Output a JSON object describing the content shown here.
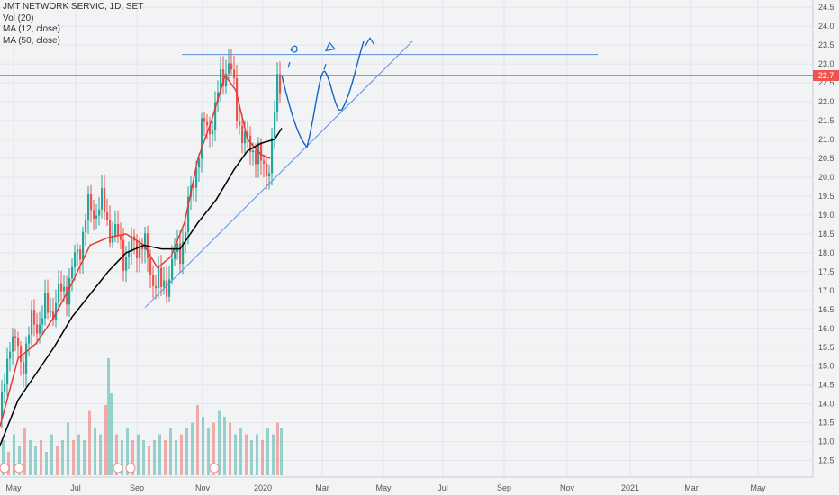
{
  "legend": {
    "symbol": "JMT NETWORK SERVIC, 1D, SET",
    "vol": "Vol (20)",
    "ma12": "MA (12, close)",
    "ma50": "MA (50, close)"
  },
  "last_price_label": "22.7",
  "colors": {
    "background": "#f2f3f5",
    "up": "#26a69a",
    "down": "#ef5350",
    "ma12": "#e53935",
    "ma50": "#000000",
    "drawing": "#1565c0",
    "trendline": "#5b8fd6",
    "price_line": "#ef5350"
  },
  "chart_data": {
    "type": "candlestick",
    "title": "JMT NETWORK SERVIC, 1D, SET",
    "y_axis": {
      "ticks": [
        "24.5",
        "24.0",
        "23.5",
        "23.0",
        "22.5",
        "22.0",
        "21.5",
        "21.0",
        "20.5",
        "20.0",
        "19.5",
        "19.0",
        "18.5",
        "18.0",
        "17.5",
        "17.0",
        "16.5",
        "16.0",
        "15.5",
        "15.0",
        "14.5",
        "14.0",
        "13.5",
        "13.0",
        "12.5"
      ],
      "range": [
        12.3,
        24.6
      ]
    },
    "x_axis": {
      "ticks": [
        "May",
        "Jul",
        "Sep",
        "Nov",
        "2020",
        "Mar",
        "May",
        "Jul",
        "Sep",
        "Nov",
        "2021",
        "Mar",
        "May"
      ]
    },
    "last_price": 22.7,
    "price_series": [
      [
        0,
        13.6
      ],
      [
        10,
        15.9
      ],
      [
        22,
        15.1
      ],
      [
        35,
        16.1
      ],
      [
        50,
        16.4
      ],
      [
        65,
        16.8
      ],
      [
        80,
        17.5
      ],
      [
        95,
        19.0
      ],
      [
        110,
        19.3
      ],
      [
        125,
        18.5
      ],
      [
        140,
        17.9
      ],
      [
        155,
        18.4
      ],
      [
        165,
        17.6
      ],
      [
        178,
        17.0
      ],
      [
        190,
        17.6
      ],
      [
        205,
        18.6
      ],
      [
        215,
        20.2
      ],
      [
        225,
        21.3
      ],
      [
        238,
        21.6
      ],
      [
        245,
        22.8
      ],
      [
        252,
        23.0
      ],
      [
        260,
        22.2
      ],
      [
        270,
        20.8
      ],
      [
        280,
        20.9
      ],
      [
        290,
        20.2
      ],
      [
        300,
        20.5
      ],
      [
        307,
        22.4
      ],
      [
        312,
        22.8
      ]
    ],
    "ma12_points": [
      [
        0,
        13.4
      ],
      [
        20,
        15.2
      ],
      [
        40,
        15.6
      ],
      [
        60,
        16.3
      ],
      [
        80,
        17.2
      ],
      [
        100,
        18.2
      ],
      [
        120,
        18.4
      ],
      [
        140,
        18.5
      ],
      [
        160,
        18.2
      ],
      [
        175,
        17.6
      ],
      [
        190,
        17.9
      ],
      [
        205,
        18.8
      ],
      [
        220,
        20.5
      ],
      [
        235,
        21.5
      ],
      [
        250,
        22.7
      ],
      [
        262,
        22.3
      ],
      [
        275,
        21.0
      ],
      [
        290,
        20.6
      ],
      [
        300,
        20.5
      ]
    ],
    "ma50_points": [
      [
        0,
        12.9
      ],
      [
        20,
        14.1
      ],
      [
        40,
        14.8
      ],
      [
        60,
        15.5
      ],
      [
        80,
        16.3
      ],
      [
        100,
        16.9
      ],
      [
        120,
        17.5
      ],
      [
        140,
        18.0
      ],
      [
        160,
        18.2
      ],
      [
        180,
        18.1
      ],
      [
        200,
        18.1
      ],
      [
        220,
        18.8
      ],
      [
        240,
        19.4
      ],
      [
        260,
        20.2
      ],
      [
        275,
        20.7
      ],
      [
        290,
        20.9
      ],
      [
        305,
        21.0
      ],
      [
        313,
        21.3
      ]
    ],
    "volume_series": [
      [
        2,
        0.3
      ],
      [
        8,
        0.2
      ],
      [
        14,
        0.35
      ],
      [
        20,
        0.25
      ],
      [
        26,
        0.4
      ],
      [
        32,
        0.3
      ],
      [
        38,
        0.25
      ],
      [
        44,
        0.3
      ],
      [
        50,
        0.2
      ],
      [
        56,
        0.35
      ],
      [
        62,
        0.25
      ],
      [
        68,
        0.3
      ],
      [
        74,
        0.45
      ],
      [
        80,
        0.3
      ],
      [
        86,
        0.35
      ],
      [
        92,
        0.3
      ],
      [
        98,
        0.55
      ],
      [
        104,
        0.4
      ],
      [
        110,
        0.35
      ],
      [
        116,
        0.6
      ],
      [
        119,
        1.0
      ],
      [
        122,
        0.7
      ],
      [
        128,
        0.35
      ],
      [
        134,
        0.3
      ],
      [
        140,
        0.4
      ],
      [
        146,
        0.3
      ],
      [
        152,
        0.35
      ],
      [
        158,
        0.3
      ],
      [
        164,
        0.25
      ],
      [
        170,
        0.3
      ],
      [
        176,
        0.35
      ],
      [
        182,
        0.3
      ],
      [
        188,
        0.4
      ],
      [
        194,
        0.3
      ],
      [
        200,
        0.35
      ],
      [
        206,
        0.4
      ],
      [
        212,
        0.45
      ],
      [
        218,
        0.6
      ],
      [
        224,
        0.5
      ],
      [
        230,
        0.4
      ],
      [
        236,
        0.45
      ],
      [
        242,
        0.55
      ],
      [
        248,
        0.5
      ],
      [
        254,
        0.45
      ],
      [
        260,
        0.35
      ],
      [
        266,
        0.4
      ],
      [
        272,
        0.35
      ],
      [
        278,
        0.3
      ],
      [
        284,
        0.35
      ],
      [
        290,
        0.3
      ],
      [
        296,
        0.4
      ],
      [
        302,
        0.35
      ],
      [
        307,
        0.45
      ],
      [
        311,
        0.4
      ]
    ],
    "grid": true,
    "legend_position": "top-left"
  }
}
